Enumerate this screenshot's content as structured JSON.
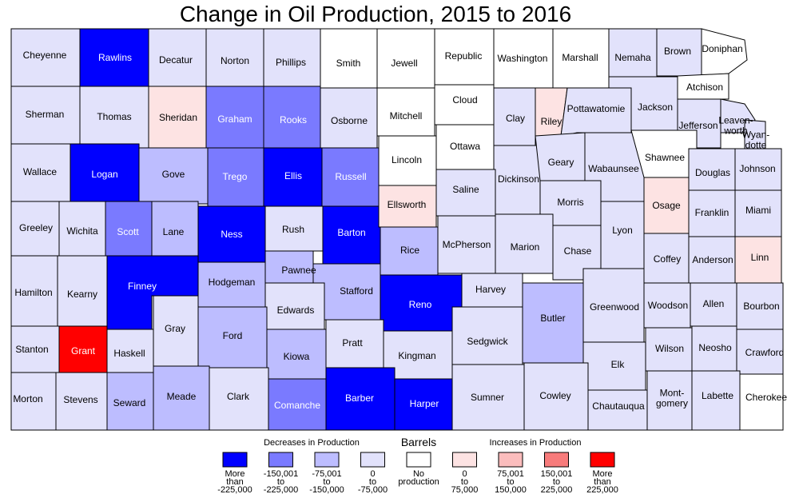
{
  "title": "Change in Oil Production, 2015 to 2016",
  "colors": {
    "dec4": "#0000ff",
    "dec3": "#7a7aff",
    "dec2": "#bdbdff",
    "dec1": "#e2e2fb",
    "none": "#ffffff",
    "inc1": "#fde3e3",
    "inc2": "#fbbdbd",
    "inc3": "#f77b7b",
    "inc4": "#ff0000"
  },
  "legend": {
    "decreases_heading": "Decreases in Production",
    "title": "Barrels",
    "increases_heading": "Increases in Production",
    "items": [
      {
        "class": "dec4",
        "label": "More than -225,000"
      },
      {
        "class": "dec3",
        "label": "-150,001 to -225,000"
      },
      {
        "class": "dec2",
        "label": "-75,001 to -150,000"
      },
      {
        "class": "dec1",
        "label": "0 to -75,000"
      },
      {
        "class": "none",
        "label": "No production"
      },
      {
        "class": "inc1",
        "label": "0 to 75,000"
      },
      {
        "class": "inc2",
        "label": "75,001 to 150,000"
      },
      {
        "class": "inc3",
        "label": "150,001 to 225,000"
      },
      {
        "class": "inc4",
        "label": "More than 225,000"
      }
    ]
  },
  "counties": [
    {
      "name": "Cheyenne",
      "class": "dec1"
    },
    {
      "name": "Rawlins",
      "class": "dec4"
    },
    {
      "name": "Decatur",
      "class": "dec1"
    },
    {
      "name": "Norton",
      "class": "dec1"
    },
    {
      "name": "Phillips",
      "class": "dec1"
    },
    {
      "name": "Smith",
      "class": "none"
    },
    {
      "name": "Jewell",
      "class": "none"
    },
    {
      "name": "Republic",
      "class": "none"
    },
    {
      "name": "Washington",
      "class": "none"
    },
    {
      "name": "Marshall",
      "class": "none"
    },
    {
      "name": "Nemaha",
      "class": "dec1"
    },
    {
      "name": "Brown",
      "class": "dec1"
    },
    {
      "name": "Doniphan",
      "class": "none"
    },
    {
      "name": "Sherman",
      "class": "dec1"
    },
    {
      "name": "Thomas",
      "class": "dec1"
    },
    {
      "name": "Sheridan",
      "class": "inc1"
    },
    {
      "name": "Graham",
      "class": "dec3"
    },
    {
      "name": "Rooks",
      "class": "dec3"
    },
    {
      "name": "Osborne",
      "class": "dec1"
    },
    {
      "name": "Mitchell",
      "class": "none"
    },
    {
      "name": "Cloud",
      "class": "none"
    },
    {
      "name": "Clay",
      "class": "dec1"
    },
    {
      "name": "Riley",
      "class": "inc1"
    },
    {
      "name": "Pottawatomie",
      "class": "dec1"
    },
    {
      "name": "Jackson",
      "class": "dec1"
    },
    {
      "name": "Atchison",
      "class": "none"
    },
    {
      "name": "Jefferson",
      "class": "dec1"
    },
    {
      "name": "Leaven-worth",
      "class": "dec1"
    },
    {
      "name": "Wyan-dotte",
      "class": "dec1"
    },
    {
      "name": "Wallace",
      "class": "dec1"
    },
    {
      "name": "Logan",
      "class": "dec4"
    },
    {
      "name": "Gove",
      "class": "dec2"
    },
    {
      "name": "Trego",
      "class": "dec3"
    },
    {
      "name": "Ellis",
      "class": "dec4"
    },
    {
      "name": "Russell",
      "class": "dec3"
    },
    {
      "name": "Lincoln",
      "class": "none"
    },
    {
      "name": "Ottawa",
      "class": "none"
    },
    {
      "name": "Dickinson",
      "class": "dec1"
    },
    {
      "name": "Geary",
      "class": "dec1"
    },
    {
      "name": "Wabaunsee",
      "class": "dec1"
    },
    {
      "name": "Shawnee",
      "class": "none"
    },
    {
      "name": "Douglas",
      "class": "dec1"
    },
    {
      "name": "Johnson",
      "class": "dec1"
    },
    {
      "name": "Greeley",
      "class": "dec1"
    },
    {
      "name": "Wichita",
      "class": "dec1"
    },
    {
      "name": "Scott",
      "class": "dec3"
    },
    {
      "name": "Lane",
      "class": "dec2"
    },
    {
      "name": "Ness",
      "class": "dec4"
    },
    {
      "name": "Rush",
      "class": "dec1"
    },
    {
      "name": "Barton",
      "class": "dec4"
    },
    {
      "name": "Ellsworth",
      "class": "inc1"
    },
    {
      "name": "Saline",
      "class": "dec1"
    },
    {
      "name": "Morris",
      "class": "dec1"
    },
    {
      "name": "Osage",
      "class": "inc1"
    },
    {
      "name": "Franklin",
      "class": "dec1"
    },
    {
      "name": "Miami",
      "class": "dec1"
    },
    {
      "name": "Hamilton",
      "class": "dec1"
    },
    {
      "name": "Kearny",
      "class": "dec1"
    },
    {
      "name": "Finney",
      "class": "dec4"
    },
    {
      "name": "Hodgeman",
      "class": "dec2"
    },
    {
      "name": "Pawnee",
      "class": "dec2"
    },
    {
      "name": "Stafford",
      "class": "dec2"
    },
    {
      "name": "Rice",
      "class": "dec2"
    },
    {
      "name": "McPherson",
      "class": "dec1"
    },
    {
      "name": "Marion",
      "class": "dec1"
    },
    {
      "name": "Chase",
      "class": "dec1"
    },
    {
      "name": "Lyon",
      "class": "dec1"
    },
    {
      "name": "Coffey",
      "class": "dec1"
    },
    {
      "name": "Anderson",
      "class": "dec1"
    },
    {
      "name": "Linn",
      "class": "inc1"
    },
    {
      "name": "Edwards",
      "class": "dec1"
    },
    {
      "name": "Reno",
      "class": "dec4"
    },
    {
      "name": "Harvey",
      "class": "dec1"
    },
    {
      "name": "Stanton",
      "class": "dec1"
    },
    {
      "name": "Grant",
      "class": "inc4"
    },
    {
      "name": "Haskell",
      "class": "dec1"
    },
    {
      "name": "Gray",
      "class": "dec1"
    },
    {
      "name": "Ford",
      "class": "dec2"
    },
    {
      "name": "Kiowa",
      "class": "dec2"
    },
    {
      "name": "Pratt",
      "class": "dec1"
    },
    {
      "name": "Kingman",
      "class": "dec1"
    },
    {
      "name": "Sedgwick",
      "class": "dec1"
    },
    {
      "name": "Butler",
      "class": "dec2"
    },
    {
      "name": "Greenwood",
      "class": "dec1"
    },
    {
      "name": "Woodson",
      "class": "dec1"
    },
    {
      "name": "Allen",
      "class": "dec1"
    },
    {
      "name": "Bourbon",
      "class": "dec1"
    },
    {
      "name": "Elk",
      "class": "dec1"
    },
    {
      "name": "Wilson",
      "class": "dec1"
    },
    {
      "name": "Neosho",
      "class": "dec1"
    },
    {
      "name": "Crawford",
      "class": "dec1"
    },
    {
      "name": "Morton",
      "class": "dec1"
    },
    {
      "name": "Stevens",
      "class": "dec1"
    },
    {
      "name": "Seward",
      "class": "dec2"
    },
    {
      "name": "Meade",
      "class": "dec2"
    },
    {
      "name": "Clark",
      "class": "dec1"
    },
    {
      "name": "Comanche",
      "class": "dec3"
    },
    {
      "name": "Barber",
      "class": "dec4"
    },
    {
      "name": "Harper",
      "class": "dec4"
    },
    {
      "name": "Sumner",
      "class": "dec1"
    },
    {
      "name": "Cowley",
      "class": "dec1"
    },
    {
      "name": "Chautauqua",
      "class": "dec1"
    },
    {
      "name": "Mont-gomery",
      "class": "dec1"
    },
    {
      "name": "Labette",
      "class": "dec1"
    },
    {
      "name": "Cherokee",
      "class": "none"
    }
  ]
}
